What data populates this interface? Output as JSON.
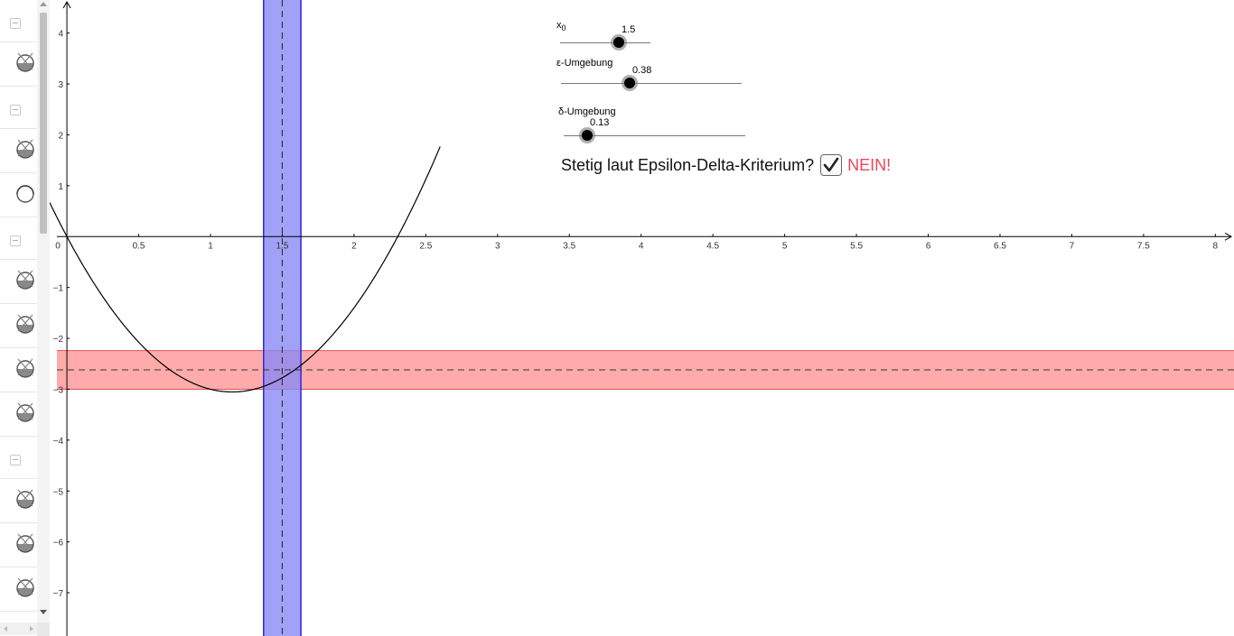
{
  "algebra_panel": {
    "rows": [
      {
        "type": "collapse"
      },
      {
        "type": "item",
        "visible": false
      },
      {
        "type": "collapse"
      },
      {
        "type": "item",
        "visible": false
      },
      {
        "type": "item",
        "visible": true
      },
      {
        "type": "collapse"
      },
      {
        "type": "item",
        "visible": false
      },
      {
        "type": "item",
        "visible": false
      },
      {
        "type": "item",
        "visible": false
      },
      {
        "type": "item",
        "visible": false
      },
      {
        "type": "collapse"
      },
      {
        "type": "item",
        "visible": false
      },
      {
        "type": "item",
        "visible": false
      },
      {
        "type": "item",
        "visible": false
      }
    ]
  },
  "graph": {
    "x_ticks": [
      "0",
      "0.5",
      "1",
      "1.5",
      "2",
      "2.5",
      "3",
      "3.5",
      "4",
      "4.5",
      "5",
      "5.5",
      "6",
      "6.5",
      "7",
      "7.5",
      "8"
    ],
    "y_ticks": [
      "4",
      "3",
      "2",
      "1",
      "−1",
      "−2",
      "−3",
      "−4",
      "−5",
      "−6",
      "−7"
    ],
    "x_range": [
      -0.12,
      8.13
    ],
    "y_range": [
      -7.85,
      4.65
    ],
    "x0": 1.5,
    "f_x0": -2.62,
    "delta_band": [
      1.37,
      1.63
    ],
    "epsilon_band": [
      -3.0,
      -2.24
    ],
    "colors": {
      "delta_band": "#8a8af5",
      "delta_edge": "#2b2bd6",
      "epsilon_band": "#ff8f8f",
      "epsilon_edge": "#e05050",
      "curve": "#000000"
    }
  },
  "sliders": [
    {
      "id": "x0",
      "label_main": "x",
      "label_sub": "0",
      "value": "1.5",
      "fraction": 0.65
    },
    {
      "id": "epsilon",
      "label": "ε-Umgebung",
      "value": "0.38",
      "fraction": 0.38
    },
    {
      "id": "delta",
      "label": "δ-Umgebung",
      "value": "0.13",
      "fraction": 0.13
    }
  ],
  "question": {
    "label": "Stetig laut Epsilon-Delta-Kriterium?",
    "checked": true,
    "answer": "NEIN!"
  }
}
